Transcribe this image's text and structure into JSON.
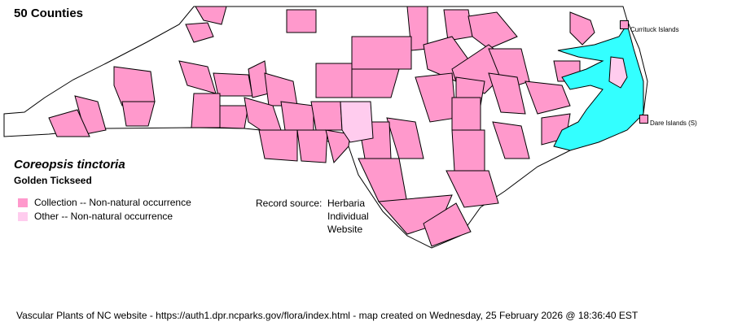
{
  "map": {
    "county_count": "50 Counties",
    "scientific_name": "Coreopsis tinctoria",
    "common_name": "Golden Tickseed",
    "legend": [
      {
        "label": "Collection -- Non-natural occurrence",
        "color": "#ff99cc"
      },
      {
        "label": "Other -- Non-natural occurrence",
        "color": "#ffccee"
      }
    ],
    "record_source": {
      "label": "Record source:",
      "values": [
        "Herbaria",
        "Individual",
        "Website"
      ]
    },
    "islands": [
      {
        "label": "Currituck Islands",
        "color": "#ff99cc"
      },
      {
        "label": "Dare Islands (S)",
        "color": "#ff99cc"
      }
    ],
    "water_color": "#33ffff",
    "footer": "Vascular Plants of NC website - https://auth1.dpr.ncparks.gov/flora/index.html - map created on Wednesday, 25 February 2026 @ 18:36:40 EST"
  }
}
